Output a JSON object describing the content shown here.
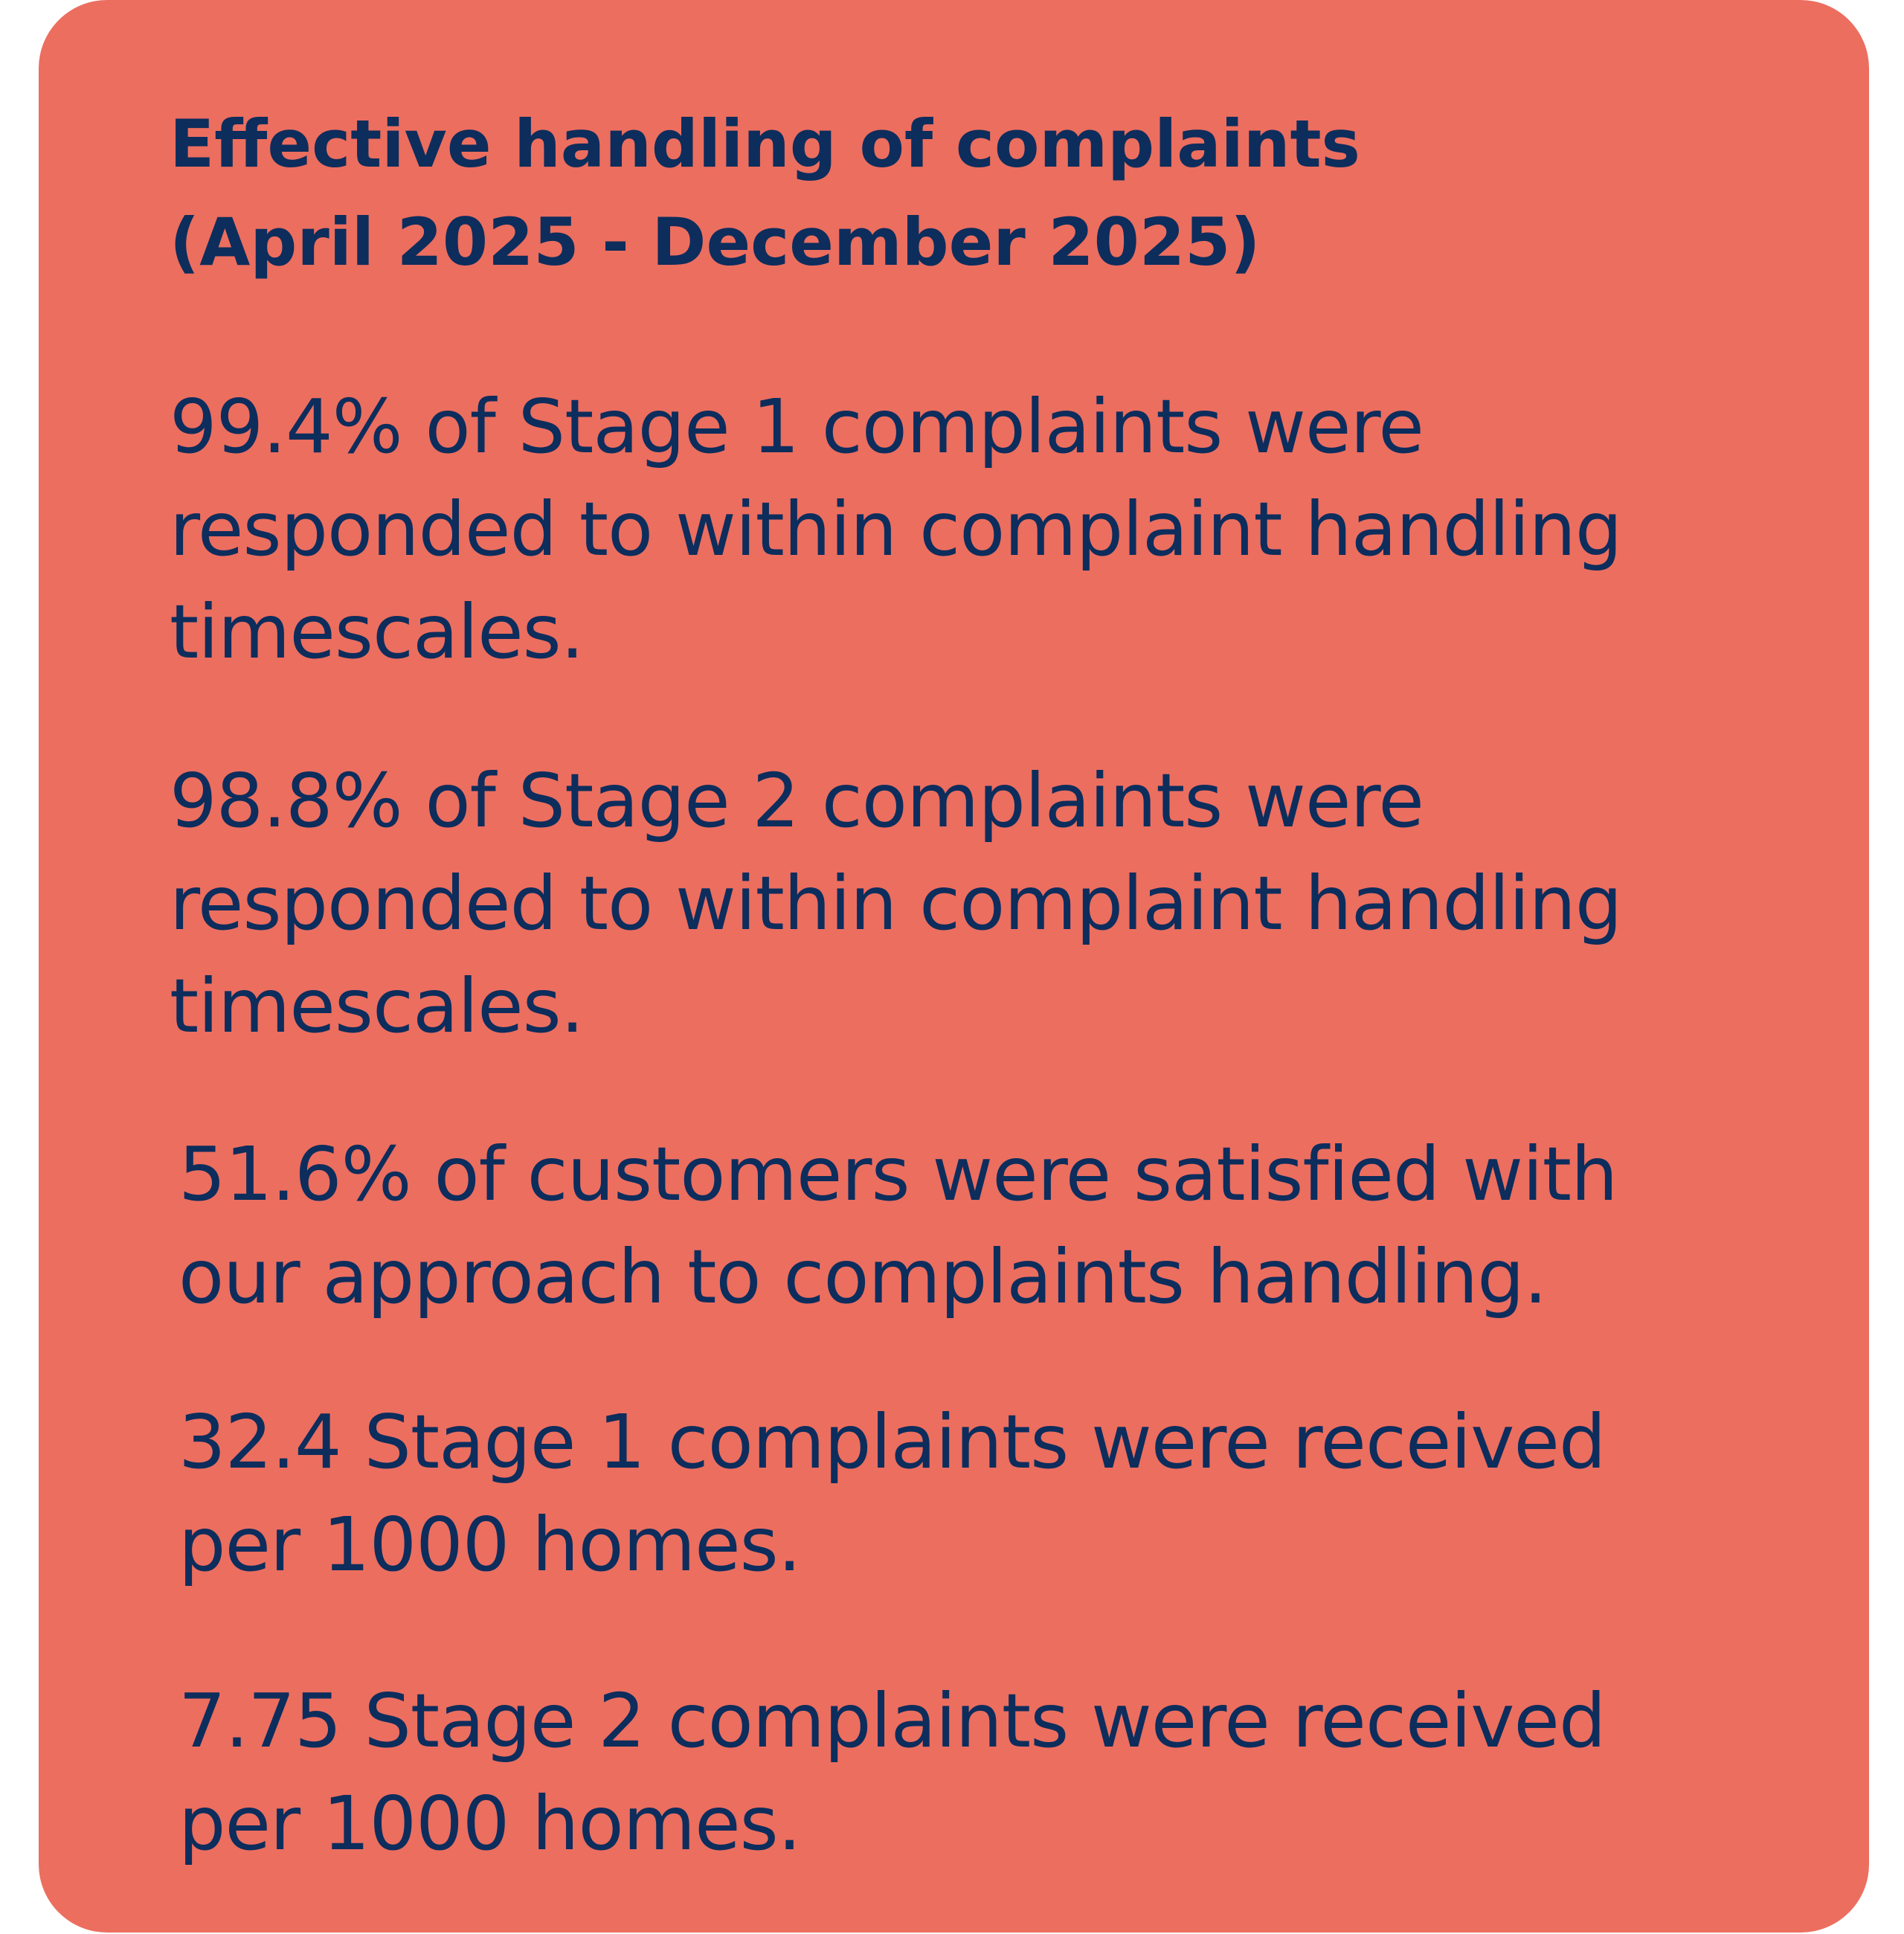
{
  "panel": {
    "background_color": "#EC6E5F",
    "text_color": "#0D2D5C",
    "title_line1": "Effective handling of complaints",
    "title_line2": "(April 2025 - December 2025)",
    "stats": [
      {
        "line1": "99.4% of Stage 1 complaints were",
        "line2": "responded to within complaint handling",
        "line3": "timescales."
      },
      {
        "line1": "98.8% of Stage 2 complaints were",
        "line2": "responded to within complaint handling",
        "line3": "timescales."
      },
      {
        "line1": "51.6% of customers were satisfied with",
        "line2": "our approach to complaints handling."
      },
      {
        "line1": "32.4 Stage 1 complaints were received",
        "line2": "per 1000 homes."
      },
      {
        "line1": "7.75 Stage 2 complaints were received",
        "line2": "per 1000 homes."
      }
    ]
  }
}
